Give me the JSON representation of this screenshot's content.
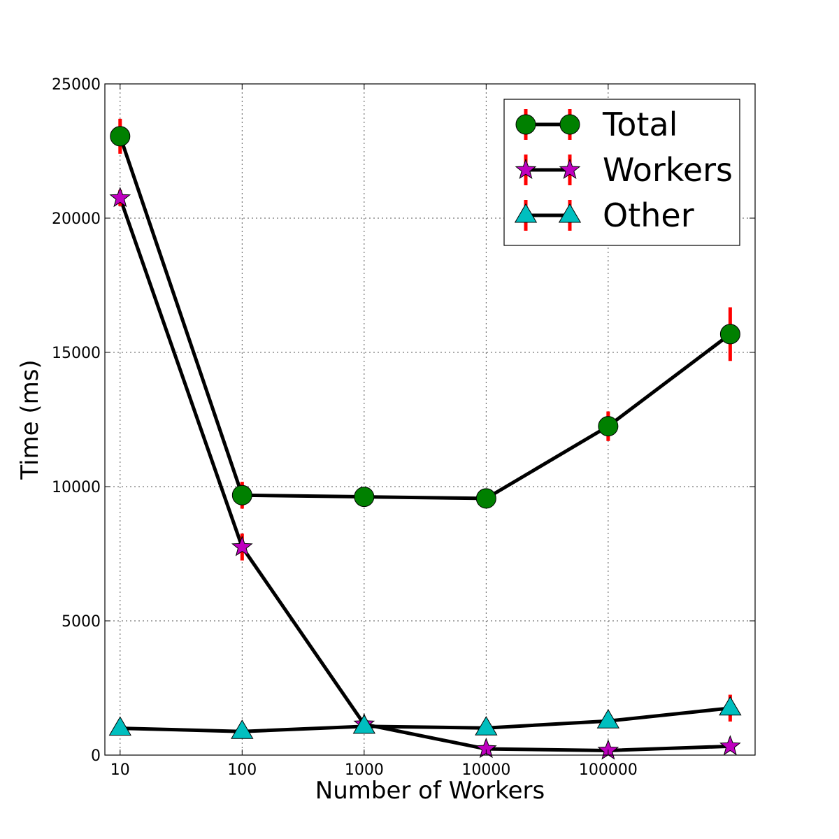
{
  "chart_data": {
    "type": "line",
    "title": "",
    "xlabel": "Number of Workers",
    "ylabel": "Time (ms)",
    "x_scale": "log",
    "x": [
      10,
      100,
      1000,
      10000,
      100000,
      1000000
    ],
    "x_tick_labels": [
      "10",
      "100",
      "1000",
      "10000",
      "100000"
    ],
    "x_ticks": [
      10,
      100,
      1000,
      10000,
      100000
    ],
    "xlim": [
      7.5,
      1600000
    ],
    "ylim": [
      0,
      25000
    ],
    "y_ticks": [
      0,
      5000,
      10000,
      15000,
      20000,
      25000
    ],
    "y_tick_labels": [
      "0",
      "5000",
      "10000",
      "15000",
      "20000",
      "25000"
    ],
    "grid": true,
    "legend_position": "top-right",
    "series": [
      {
        "name": "Total",
        "marker": "circle",
        "marker_color": "#008000",
        "line_color": "#000000",
        "error_color": "#ff0000",
        "values": [
          23050,
          9680,
          9620,
          9560,
          12250,
          15680
        ],
        "errors": [
          650,
          500,
          250,
          250,
          550,
          1000
        ]
      },
      {
        "name": "Workers",
        "marker": "star",
        "marker_color": "#bf00bf",
        "line_color": "#000000",
        "error_color": "#ff0000",
        "values": [
          20750,
          7750,
          1150,
          230,
          170,
          330
        ],
        "errors": [
          300,
          500,
          150,
          50,
          50,
          150
        ]
      },
      {
        "name": "Other",
        "marker": "triangle",
        "marker_color": "#00bfbf",
        "line_color": "#000000",
        "error_color": "#ff0000",
        "values": [
          1000,
          880,
          1070,
          1010,
          1270,
          1750
        ],
        "errors": [
          100,
          100,
          100,
          100,
          150,
          500
        ]
      }
    ]
  }
}
